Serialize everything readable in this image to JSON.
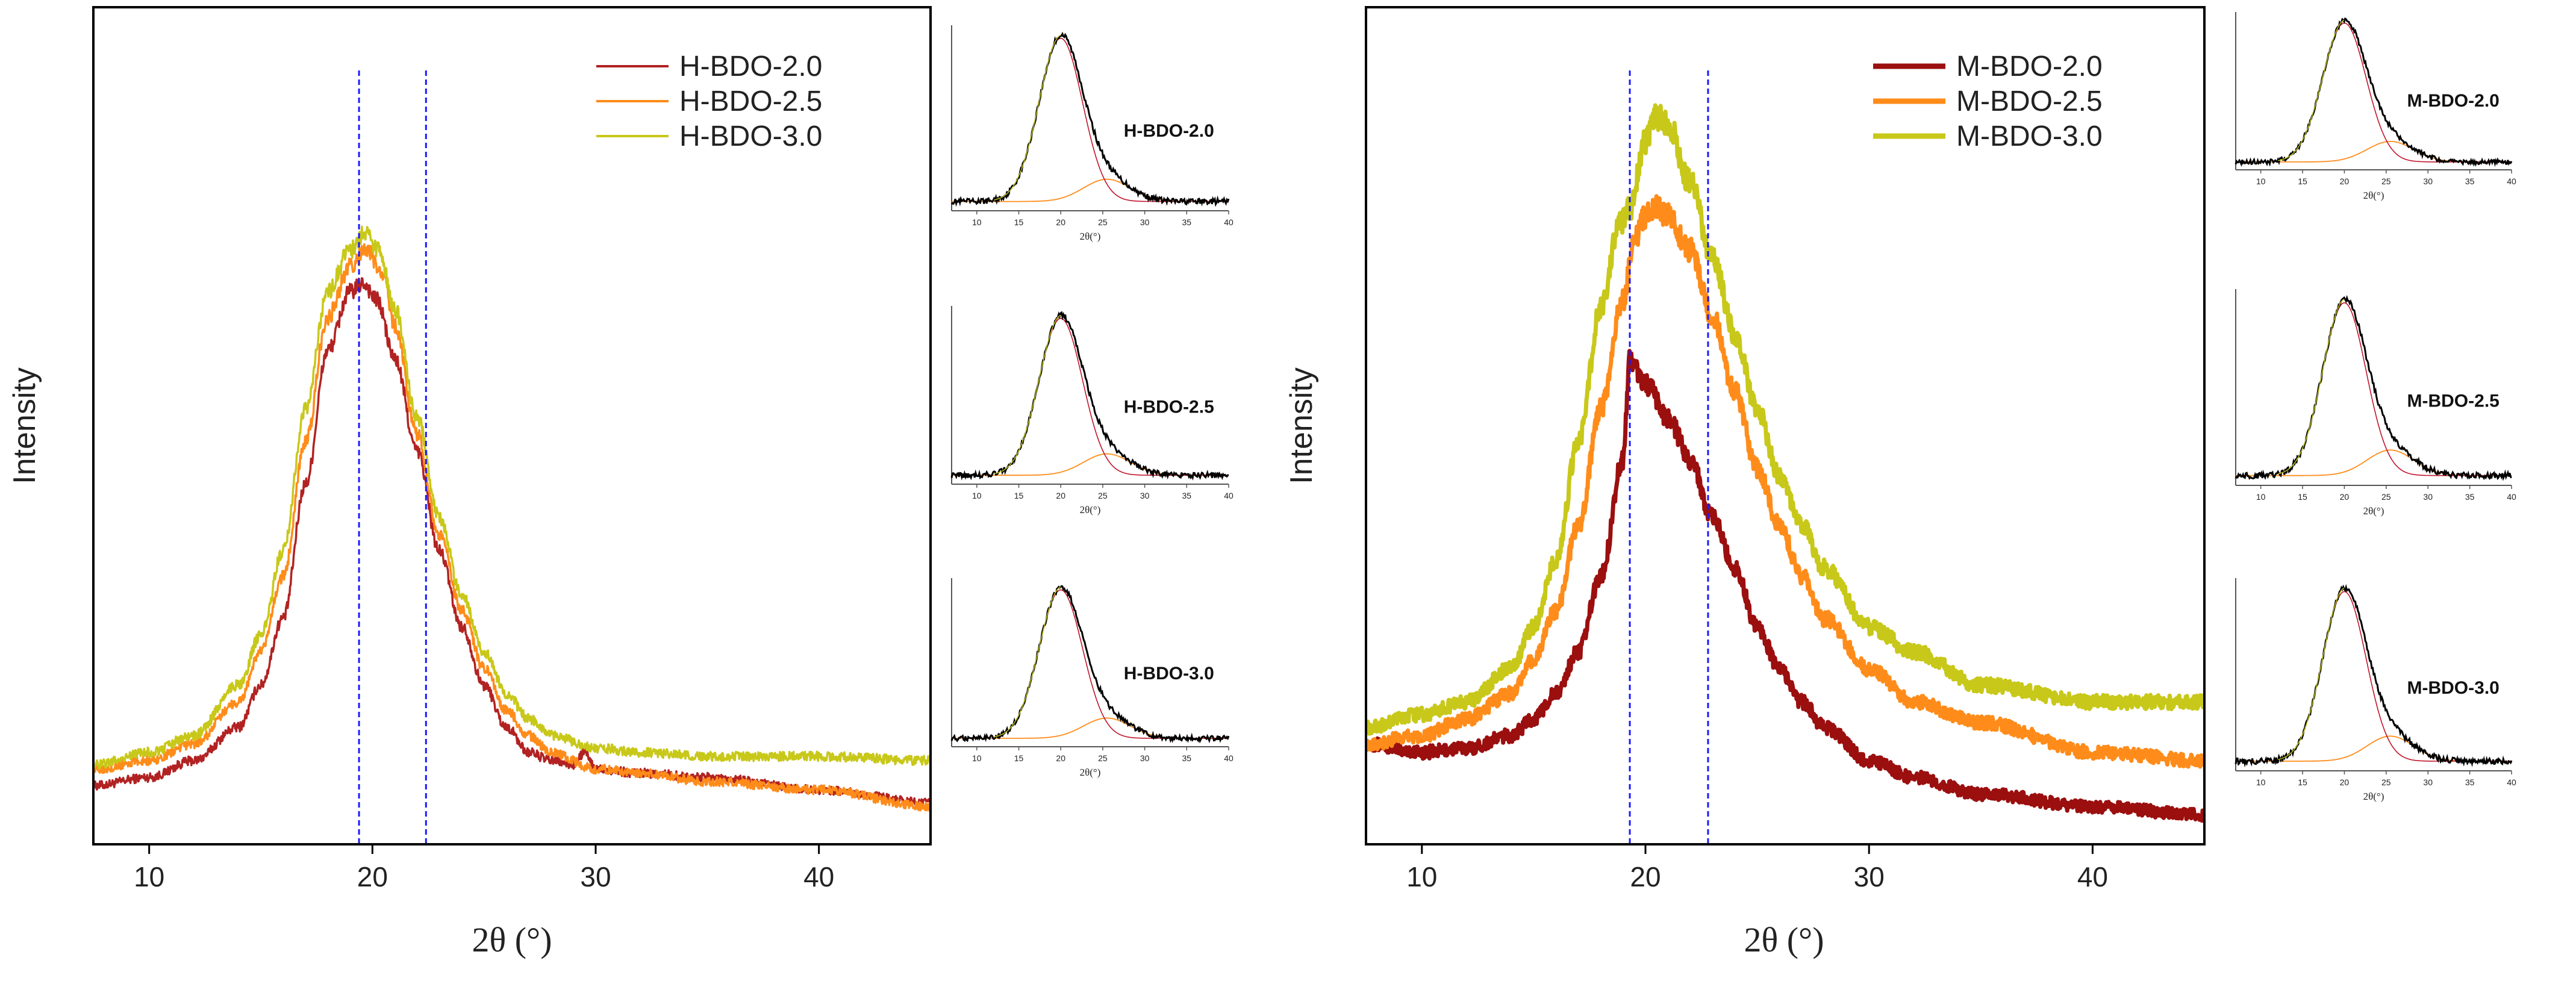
{
  "chart_data": [
    {
      "type": "line",
      "panel": "left",
      "xlabel": "2θ (°)",
      "ylabel": "Intensity",
      "xlim": [
        7.5,
        45
      ],
      "ylim": [
        0,
        100
      ],
      "xticks": [
        10,
        20,
        30,
        40
      ],
      "ref_lines_x": [
        19.4,
        22.4
      ],
      "legend": "top-right",
      "colors": {
        "ref_line": "#1a1aff"
      },
      "series": [
        {
          "name": "H-BDO-2.0",
          "color": "#b22222",
          "thick": false,
          "x": [
            7.5,
            10,
            12,
            14,
            15,
            16,
            17,
            18,
            19,
            19.6,
            20.2,
            21,
            22,
            23,
            24,
            25,
            26,
            27,
            28,
            29,
            29.5,
            30,
            32,
            35,
            40,
            45
          ],
          "y": [
            7,
            8,
            10,
            14,
            19,
            27,
            43,
            59,
            66,
            67,
            65,
            58,
            47,
            35,
            26,
            19,
            14,
            11,
            10,
            9.5,
            11,
            9,
            8.5,
            8,
            6.5,
            5
          ]
        },
        {
          "name": "H-BDO-2.5",
          "color": "#ff8c1a",
          "thick": false,
          "x": [
            7.5,
            10,
            12,
            14,
            15,
            16,
            17,
            18,
            19,
            19.7,
            20.5,
            21,
            22,
            23,
            24,
            25,
            26,
            27,
            28,
            30,
            32,
            35,
            40,
            45
          ],
          "y": [
            9,
            10,
            12,
            17,
            23,
            32,
            48,
            63,
            69,
            71,
            68,
            62,
            49,
            37,
            28,
            21,
            16,
            13,
            11,
            9,
            8.5,
            7.5,
            6.5,
            4.5
          ]
        },
        {
          "name": "H-BDO-3.0",
          "color": "#c8c81a",
          "thick": false,
          "x": [
            7.5,
            10,
            12,
            14,
            15,
            16,
            17,
            18,
            19,
            19.6,
            20.3,
            21,
            22,
            23,
            24,
            25,
            26,
            27,
            28,
            30,
            32,
            35,
            40,
            45
          ],
          "y": [
            9.5,
            11,
            13,
            19,
            25,
            35,
            52,
            66,
            71,
            73,
            71,
            64,
            51,
            39,
            30,
            23,
            18,
            15,
            13,
            11.5,
            11,
            10.5,
            10.5,
            10
          ]
        }
      ],
      "insets": [
        {
          "label": "H-BDO-2.0",
          "xlabel": "2θ(°)",
          "xticks": [
            10,
            15,
            20,
            25,
            30,
            35,
            40
          ]
        },
        {
          "label": "H-BDO-2.5",
          "xlabel": "2θ(°)",
          "xticks": [
            10,
            15,
            20,
            25,
            30,
            35,
            40
          ]
        },
        {
          "label": "H-BDO-3.0",
          "xlabel": "2θ(°)",
          "xticks": [
            10,
            15,
            20,
            25,
            30,
            35,
            40
          ]
        }
      ]
    },
    {
      "type": "line",
      "panel": "right",
      "xlabel": "2θ (°)",
      "ylabel": "Intensity",
      "xlim": [
        7.5,
        45
      ],
      "ylim": [
        0,
        100
      ],
      "xticks": [
        10,
        20,
        30,
        40
      ],
      "ref_lines_x": [
        19.3,
        22.8
      ],
      "legend": "top-right",
      "colors": {
        "ref_line": "#1a1aff"
      },
      "series": [
        {
          "name": "M-BDO-2.0",
          "color": "#9b0f0f",
          "thick": true,
          "x": [
            7.5,
            10,
            12,
            14,
            15,
            16,
            17,
            18,
            19,
            19.3,
            20,
            21,
            22,
            23,
            24,
            25,
            26,
            27,
            28,
            30,
            32,
            35,
            40,
            45
          ],
          "y": [
            12,
            11,
            11.5,
            13,
            15,
            18,
            23,
            32,
            46,
            58,
            55,
            51,
            46,
            39,
            33,
            26,
            21,
            17,
            14,
            10,
            8,
            6,
            4.5,
            3.5
          ]
        },
        {
          "name": "M-BDO-2.5",
          "color": "#ff8c1a",
          "thick": true,
          "x": [
            7.5,
            10,
            12,
            14,
            15,
            16,
            17,
            18,
            19,
            19.5,
            20,
            20.5,
            21,
            22,
            23,
            24,
            25,
            26,
            27,
            28,
            30,
            32,
            35,
            40,
            45
          ],
          "y": [
            12,
            13,
            15,
            18,
            22,
            28,
            38,
            52,
            65,
            72,
            75,
            76,
            75,
            71,
            63,
            54,
            45,
            38,
            32,
            27,
            21,
            17,
            14.5,
            11,
            10
          ]
        },
        {
          "name": "M-BDO-3.0",
          "color": "#c8c81a",
          "thick": true,
          "x": [
            7.5,
            10,
            12,
            14,
            15,
            16,
            17,
            18,
            18.8,
            19.3,
            20,
            20.5,
            21,
            22,
            23,
            24,
            25,
            26,
            27,
            28,
            30,
            32,
            35,
            40,
            45
          ],
          "y": [
            14,
            15.5,
            17,
            21,
            26,
            34,
            48,
            64,
            74,
            76,
            84,
            87,
            86,
            79,
            70,
            61,
            52,
            44,
            38,
            33,
            26,
            23,
            19,
            17,
            17
          ]
        }
      ],
      "insets": [
        {
          "label": "M-BDO-2.0",
          "xlabel": "2θ(°)",
          "xticks": [
            10,
            15,
            20,
            25,
            30,
            35,
            40
          ]
        },
        {
          "label": "M-BDO-2.5",
          "xlabel": "2θ(°)",
          "xticks": [
            10,
            15,
            20,
            25,
            30,
            35,
            40
          ]
        },
        {
          "label": "M-BDO-3.0",
          "xlabel": "2θ(°)",
          "xticks": [
            10,
            15,
            20,
            25,
            30,
            35,
            40
          ]
        }
      ]
    }
  ]
}
